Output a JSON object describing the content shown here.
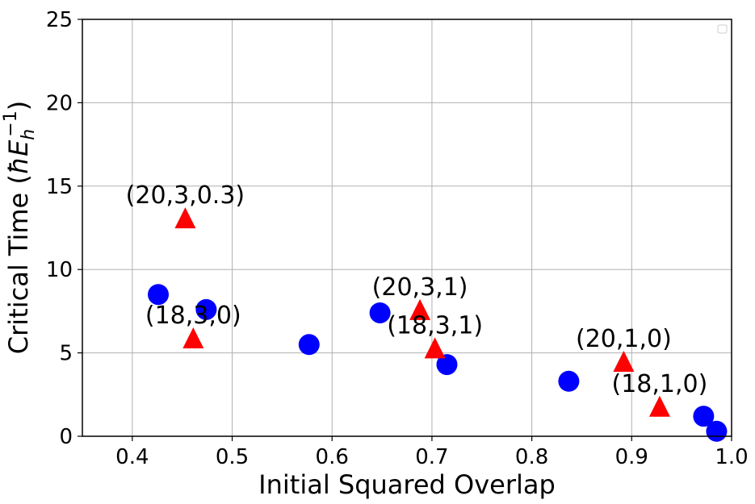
{
  "chart_data": {
    "type": "scatter",
    "title": "",
    "xlabel": "Initial Squared Overlap",
    "ylabel_main": "Critical Time (",
    "ylabel_hbar": "ħ",
    "ylabel_E": "E",
    "ylabel_sub": "h",
    "ylabel_sup": "−1",
    "ylabel_close": ")",
    "xlim": [
      0.35,
      1.0
    ],
    "ylim": [
      0,
      25
    ],
    "xticks": [
      0.4,
      0.5,
      0.6,
      0.7,
      0.8,
      0.9,
      1.0
    ],
    "xtick_labels": [
      "0.4",
      "0.5",
      "0.6",
      "0.7",
      "0.8",
      "0.9",
      "1.0"
    ],
    "yticks": [
      0,
      5,
      10,
      15,
      20,
      25
    ],
    "ytick_labels": [
      "0",
      "5",
      "10",
      "15",
      "20",
      "25"
    ],
    "grid": true,
    "legend": "top-right",
    "series": [
      {
        "marker": "circle",
        "color": "#0000ff",
        "points": [
          {
            "x": 0.426,
            "y": 8.5
          },
          {
            "x": 0.474,
            "y": 7.6
          },
          {
            "x": 0.577,
            "y": 5.5
          },
          {
            "x": 0.648,
            "y": 7.4
          },
          {
            "x": 0.715,
            "y": 4.3
          },
          {
            "x": 0.837,
            "y": 3.3
          },
          {
            "x": 0.972,
            "y": 1.2
          },
          {
            "x": 0.985,
            "y": 0.3
          }
        ]
      },
      {
        "marker": "triangle",
        "color": "#ff0000",
        "points": [
          {
            "x": 0.453,
            "y": 13.1,
            "label": "(20,3,0.3)"
          },
          {
            "x": 0.461,
            "y": 5.9,
            "label": "(18,3,0)"
          },
          {
            "x": 0.688,
            "y": 7.6,
            "label": "(20,3,1)"
          },
          {
            "x": 0.703,
            "y": 5.3,
            "label": "(18,3,1)"
          },
          {
            "x": 0.892,
            "y": 4.5,
            "label": "(20,1,0)"
          },
          {
            "x": 0.928,
            "y": 1.8,
            "label": "(18,1,0)"
          }
        ]
      }
    ]
  }
}
